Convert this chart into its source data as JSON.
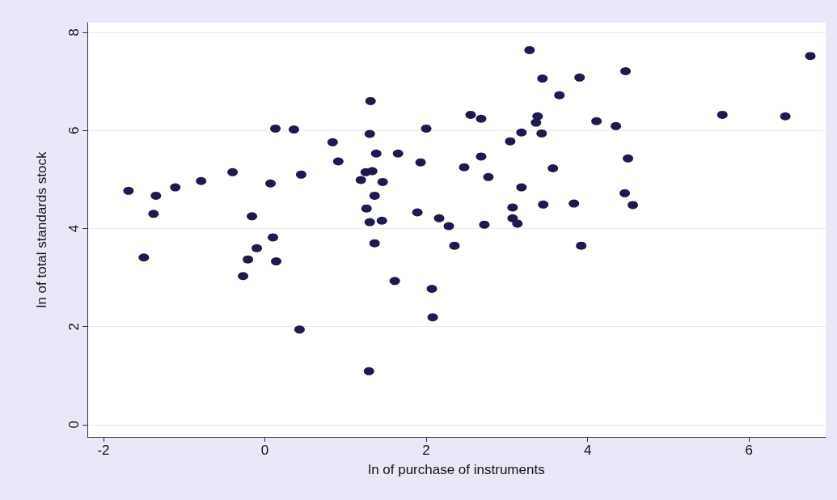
{
  "chart_data": {
    "type": "scatter",
    "xlabel": "ln of purchase of instruments",
    "ylabel": "ln of total standards stock",
    "x": [
      -1.69,
      -1.35,
      -1.38,
      -1.11,
      -0.79,
      -1.5,
      -0.4,
      0.13,
      0.36,
      0.84,
      0.91,
      0.45,
      0.07,
      -0.16,
      0.1,
      -0.1,
      -0.21,
      0.14,
      -0.27,
      0.43,
      3.28,
      3.44,
      3.9,
      3.65,
      1.31,
      2.55,
      2.68,
      3.38,
      3.36,
      2.0,
      1.3,
      3.18,
      3.43,
      3.04,
      1.38,
      1.65,
      2.68,
      1.93,
      2.47,
      3.57,
      1.25,
      1.33,
      1.19,
      1.46,
      2.77,
      1.36,
      3.18,
      1.26,
      3.07,
      3.45,
      3.83,
      1.3,
      1.45,
      1.89,
      2.16,
      2.28,
      2.72,
      3.07,
      3.13,
      1.36,
      2.35,
      3.92,
      1.61,
      2.07,
      2.08,
      1.29,
      6.76,
      4.47,
      5.67,
      6.45,
      4.11,
      4.35,
      4.5,
      4.46,
      4.56
    ],
    "values": [
      4.77,
      4.67,
      4.3,
      4.84,
      4.97,
      3.41,
      5.15,
      6.04,
      6.02,
      5.76,
      5.37,
      5.1,
      4.92,
      4.25,
      3.82,
      3.6,
      3.37,
      3.33,
      3.03,
      1.94,
      7.64,
      7.06,
      7.08,
      6.72,
      6.6,
      6.32,
      6.24,
      6.29,
      6.16,
      6.04,
      5.93,
      5.96,
      5.94,
      5.78,
      5.53,
      5.53,
      5.47,
      5.35,
      5.25,
      5.23,
      5.15,
      5.17,
      4.99,
      4.95,
      5.05,
      4.67,
      4.84,
      4.41,
      4.43,
      4.49,
      4.51,
      4.13,
      4.16,
      4.33,
      4.21,
      4.05,
      4.08,
      4.21,
      4.1,
      3.7,
      3.65,
      3.65,
      2.93,
      2.77,
      2.19,
      1.09,
      7.52,
      7.21,
      6.32,
      6.29,
      6.19,
      6.09,
      5.43,
      4.72,
      4.48
    ],
    "color": "#1c1a4e",
    "marker": "circle",
    "xlim": [
      -2.2,
      6.95
    ],
    "xticks": [
      -2,
      0,
      2,
      4,
      6
    ],
    "ylim": [
      -0.25,
      8.2
    ],
    "yticks": [
      0,
      2,
      4,
      6,
      8
    ],
    "grid": "y"
  }
}
